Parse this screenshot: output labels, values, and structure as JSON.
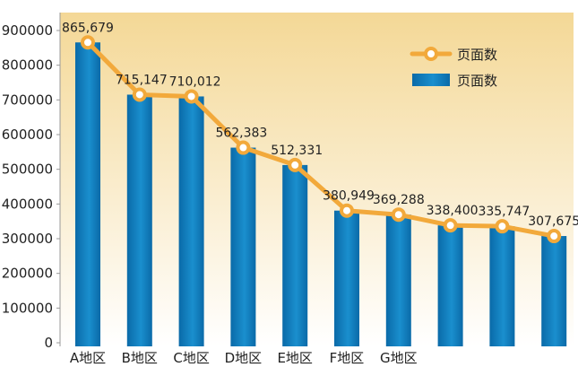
{
  "chart_data": {
    "type": "bar",
    "categories": [
      "A地区",
      "B地区",
      "C地区",
      "D地区",
      "E地区",
      "F地区",
      "G地区",
      "",
      "",
      ""
    ],
    "series": [
      {
        "name": "页面数",
        "kind": "line",
        "values": [
          865679,
          715147,
          710012,
          562383,
          512331,
          380949,
          369288,
          338400,
          335747,
          307675
        ]
      },
      {
        "name": "页面数",
        "kind": "bar",
        "values": [
          865679,
          715147,
          710012,
          562383,
          512331,
          380949,
          369288,
          338400,
          335747,
          307675
        ]
      }
    ],
    "data_labels": [
      "865,679",
      "715,147",
      "710,012",
      "562,383",
      "512,331",
      "380,949",
      "369,288",
      "338,400",
      "335,747",
      "307,675"
    ],
    "y_ticks": [
      "0",
      "100000",
      "200000",
      "300000",
      "400000",
      "500000",
      "600000",
      "700000",
      "800000",
      "900000"
    ],
    "ylim": [
      0,
      900000
    ],
    "grid": false,
    "legend_position": "top-right",
    "colors": {
      "bar": "#1a8fce",
      "bar_dark": "#0a6aa8",
      "line": "#f2a93b",
      "marker_fill": "#ffffff",
      "background_top": "#f4d896",
      "background_bottom": "#ffffff"
    }
  }
}
